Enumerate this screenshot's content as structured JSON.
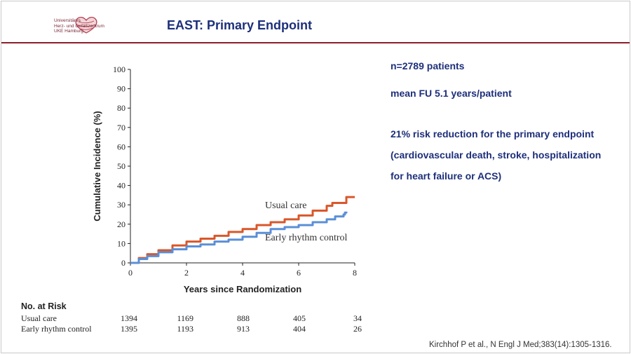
{
  "header": {
    "title": "EAST: Primary Endpoint",
    "logo_lines": [
      "Universitäres",
      "Herz- und Gefäßzentrum",
      "UKE Hamburg"
    ]
  },
  "info": {
    "patients": "n=2789 patients",
    "followup": "mean FU 5.1 years/patient",
    "risk_reduction": "21% risk reduction for the primary endpoint",
    "endpoint_line1": "(cardiovascular death, stroke, hospitalization",
    "endpoint_line2": "for heart failure or ACS)"
  },
  "chart_data": {
    "type": "line",
    "title": "",
    "xlabel": "Years since Randomization",
    "ylabel": "Cumulative Incidence (%)",
    "xlim": [
      0,
      8
    ],
    "ylim": [
      0,
      100
    ],
    "xticks": [
      "0",
      "2",
      "4",
      "6",
      "8"
    ],
    "yticks": [
      "0",
      "10",
      "20",
      "30",
      "40",
      "50",
      "60",
      "70",
      "80",
      "90",
      "100"
    ],
    "series": [
      {
        "name": "Usual care",
        "color": "#d9572a",
        "points": [
          [
            0,
            0
          ],
          [
            0.3,
            2.5
          ],
          [
            0.6,
            4.5
          ],
          [
            1.0,
            6.5
          ],
          [
            1.5,
            9
          ],
          [
            2.0,
            11
          ],
          [
            2.5,
            12.5
          ],
          [
            3.0,
            14
          ],
          [
            3.5,
            16
          ],
          [
            4.0,
            17.5
          ],
          [
            4.5,
            19.5
          ],
          [
            5.0,
            21
          ],
          [
            5.5,
            22.5
          ],
          [
            6.0,
            24.5
          ],
          [
            6.5,
            27
          ],
          [
            7.0,
            29.5
          ],
          [
            7.2,
            31
          ],
          [
            7.5,
            31
          ],
          [
            7.7,
            34
          ],
          [
            8.0,
            34
          ]
        ]
      },
      {
        "name": "Early rhythm control",
        "color": "#5b8fd6",
        "points": [
          [
            0,
            0
          ],
          [
            0.3,
            2
          ],
          [
            0.6,
            3.5
          ],
          [
            1.0,
            5.5
          ],
          [
            1.5,
            7
          ],
          [
            2.0,
            8.5
          ],
          [
            2.5,
            9.5
          ],
          [
            3.0,
            11
          ],
          [
            3.5,
            12
          ],
          [
            4.0,
            13.5
          ],
          [
            4.5,
            15.5
          ],
          [
            5.0,
            17.5
          ],
          [
            5.5,
            18.5
          ],
          [
            6.0,
            19.5
          ],
          [
            6.5,
            21
          ],
          [
            7.0,
            22.5
          ],
          [
            7.3,
            24
          ],
          [
            7.6,
            25
          ],
          [
            7.65,
            26
          ],
          [
            7.7,
            26.5
          ]
        ]
      }
    ],
    "at_risk": {
      "heading": "No. at Risk",
      "years": [
        0,
        2,
        4,
        6,
        8
      ],
      "rows": [
        {
          "label": "Usual care",
          "values": [
            "1394",
            "1169",
            "888",
            "405",
            "34"
          ]
        },
        {
          "label": "Early rhythm control",
          "values": [
            "1395",
            "1193",
            "913",
            "404",
            "26"
          ]
        }
      ]
    }
  },
  "citation": "Kirchhof P et al., N Engl J Med;383(14):1305-1316."
}
